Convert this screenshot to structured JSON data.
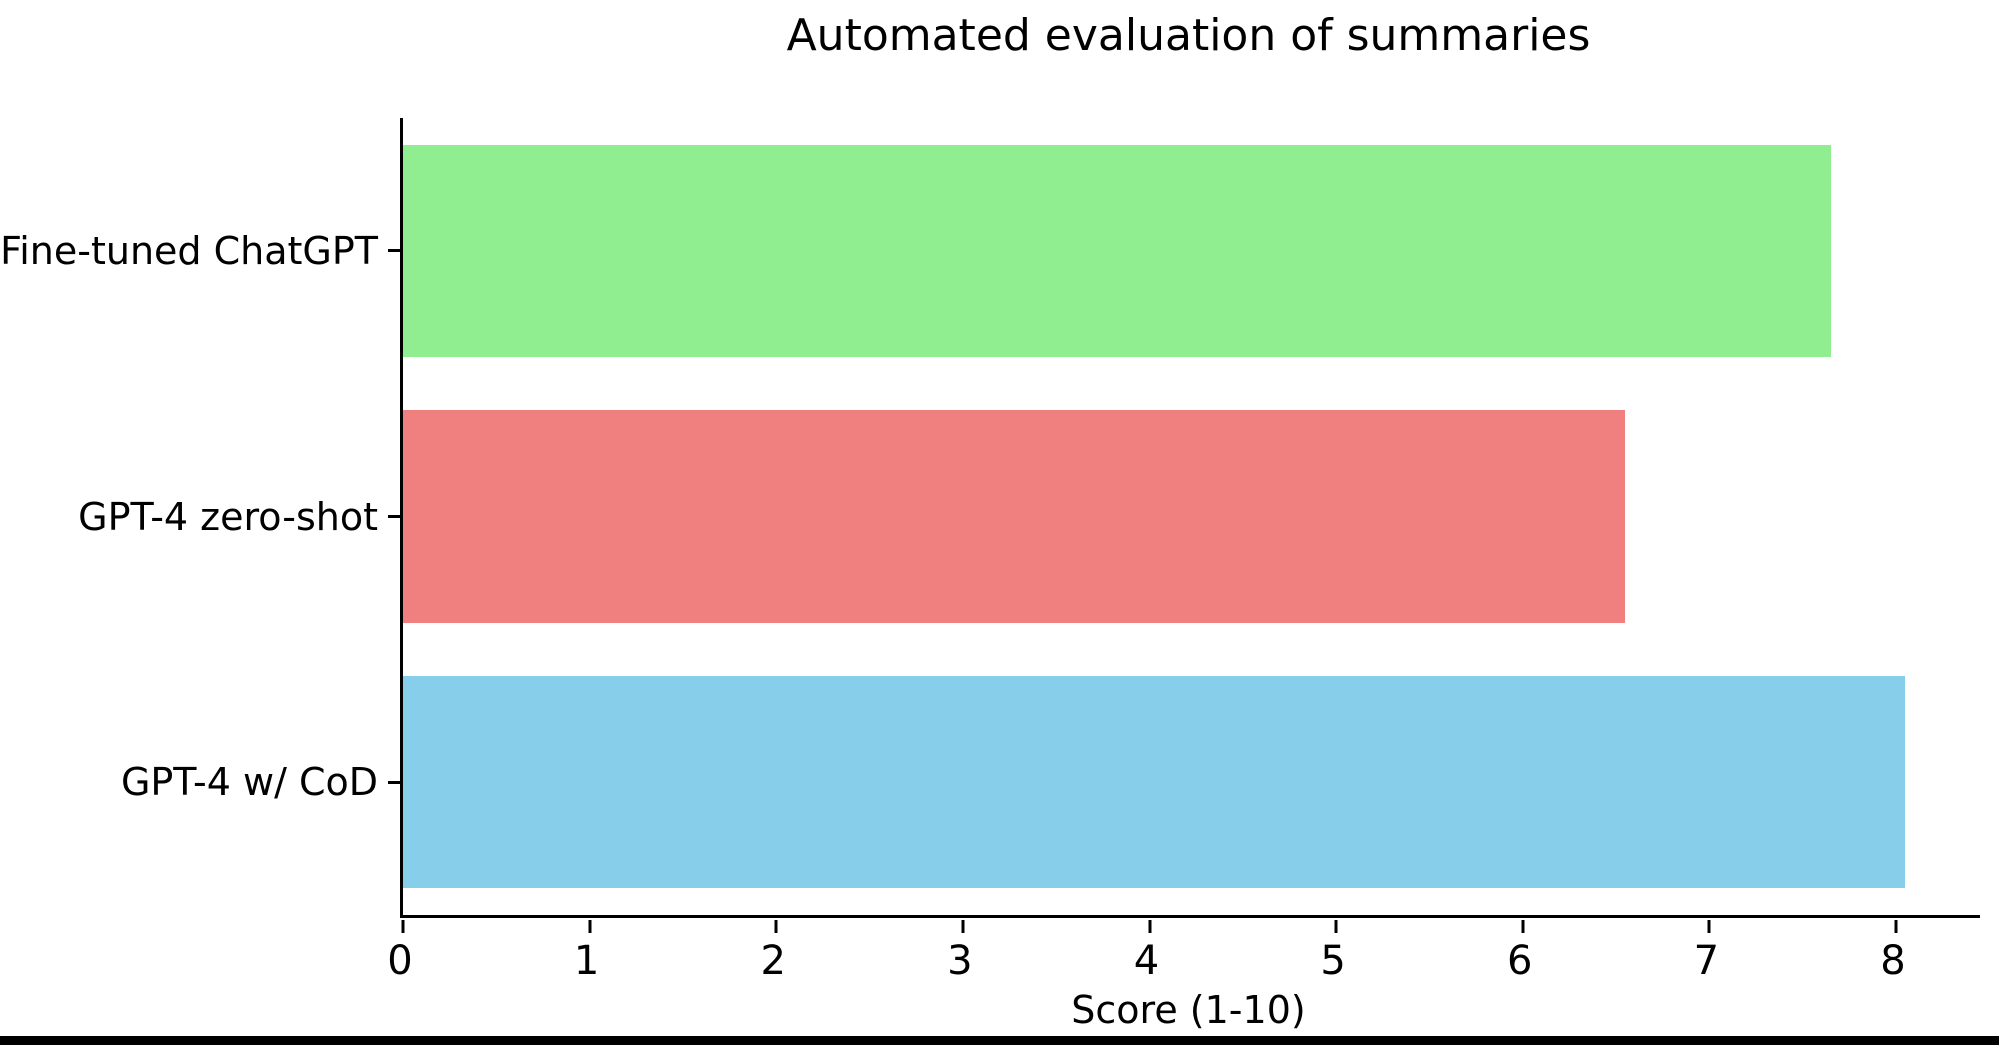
{
  "chart_data": {
    "type": "bar",
    "orientation": "horizontal",
    "title": "Automated evaluation of summaries",
    "xlabel": "Score (1-10)",
    "ylabel": "",
    "categories": [
      "Fine-tuned ChatGPT",
      "GPT-4 zero-shot",
      "GPT-4 w/ CoD"
    ],
    "values": [
      7.65,
      6.55,
      8.05
    ],
    "bar_colors": [
      "#90EE90",
      "#F08080",
      "#87CEEB"
    ],
    "bar_color_names": [
      "lightgreen",
      "lightcoral",
      "skyblue"
    ],
    "xlim": [
      0,
      8.45
    ],
    "xticks": [
      0,
      1,
      2,
      3,
      4,
      5,
      6,
      7,
      8
    ],
    "grid": false,
    "legend": "none",
    "bar_relative_height": 0.8
  },
  "colors": {
    "background": "#FFFFFF",
    "axis": "#000000",
    "text": "#000000",
    "bottom_strip": "#000000"
  }
}
